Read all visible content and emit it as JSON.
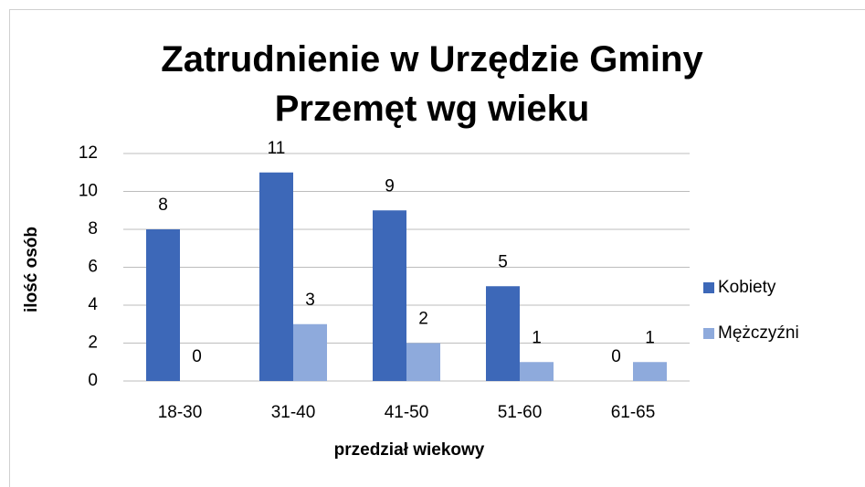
{
  "chart_data": {
    "type": "bar",
    "title": "Zatrudnienie w Urzędzie Gminy Przemęt wg wieku",
    "x_label": "przedział wiekowy",
    "y_label": "ilość osób",
    "categories": [
      "18-30",
      "31-40",
      "41-50",
      "51-60",
      "61-65"
    ],
    "series": [
      {
        "name": "Kobiety",
        "color": "#3d68b8",
        "values": [
          8,
          11,
          9,
          5,
          0
        ]
      },
      {
        "name": "Mężczyźni",
        "color": "#8eaadc",
        "values": [
          0,
          3,
          2,
          1,
          1
        ]
      }
    ],
    "ylim": [
      0,
      12
    ],
    "yticks": [
      0,
      2,
      4,
      6,
      8,
      10,
      12
    ],
    "grid": true,
    "legend": "right"
  }
}
